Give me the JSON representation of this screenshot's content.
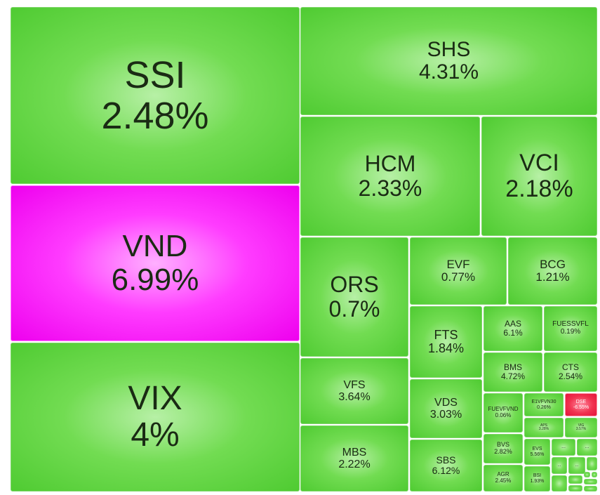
{
  "chart_data": {
    "type": "treemap",
    "colors": {
      "up": "#52cc35",
      "ceiling": "#ff00ff",
      "down": "#e8173e"
    },
    "tiles": [
      {
        "ticker": "SSI",
        "change": "2.48%",
        "status": "up"
      },
      {
        "ticker": "VND",
        "change": "6.99%",
        "status": "ceiling"
      },
      {
        "ticker": "VIX",
        "change": "4%",
        "status": "up"
      },
      {
        "ticker": "SHS",
        "change": "4.31%",
        "status": "up"
      },
      {
        "ticker": "HCM",
        "change": "2.33%",
        "status": "up"
      },
      {
        "ticker": "VCI",
        "change": "2.18%",
        "status": "up"
      },
      {
        "ticker": "ORS",
        "change": "0.7%",
        "status": "up"
      },
      {
        "ticker": "EVF",
        "change": "0.77%",
        "status": "up"
      },
      {
        "ticker": "BCG",
        "change": "1.21%",
        "status": "up"
      },
      {
        "ticker": "FTS",
        "change": "1.84%",
        "status": "up"
      },
      {
        "ticker": "AAS",
        "change": "6.1%",
        "status": "up"
      },
      {
        "ticker": "FUESSVFL",
        "change": "0.19%",
        "status": "up"
      },
      {
        "ticker": "BMS",
        "change": "4.72%",
        "status": "up"
      },
      {
        "ticker": "CTS",
        "change": "2.54%",
        "status": "up"
      },
      {
        "ticker": "VFS",
        "change": "3.64%",
        "status": "up"
      },
      {
        "ticker": "VDS",
        "change": "3.03%",
        "status": "up"
      },
      {
        "ticker": "FUEVFVND",
        "change": "0.06%",
        "status": "up"
      },
      {
        "ticker": "E1VFVN30",
        "change": "0.26%",
        "status": "up"
      },
      {
        "ticker": "DSE",
        "change": "-6.55%",
        "status": "down"
      },
      {
        "ticker": "APS",
        "change": "3.28%",
        "status": "up"
      },
      {
        "ticker": "VIG",
        "change": "3.57%",
        "status": "up"
      },
      {
        "ticker": "MBS",
        "change": "2.22%",
        "status": "up"
      },
      {
        "ticker": "SBS",
        "change": "6.12%",
        "status": "up"
      },
      {
        "ticker": "BVS",
        "change": "2.82%",
        "status": "up"
      },
      {
        "ticker": "EVS",
        "change": "5.56%",
        "status": "up"
      },
      {
        "ticker": "AGR",
        "change": "2.45%",
        "status": "up"
      },
      {
        "ticker": "BSI",
        "change": "1.93%",
        "status": "up"
      },
      {
        "ticker": "...",
        "change": "",
        "status": "up"
      },
      {
        "ticker": "...",
        "change": "",
        "status": "up"
      },
      {
        "ticker": "...",
        "change": "",
        "status": "up"
      },
      {
        "ticker": "...",
        "change": "",
        "status": "up"
      },
      {
        "ticker": "",
        "change": "",
        "status": "up"
      },
      {
        "ticker": "",
        "change": "",
        "status": "up"
      },
      {
        "ticker": "",
        "change": "",
        "status": "up"
      },
      {
        "ticker": "",
        "change": "",
        "status": "up"
      },
      {
        "ticker": "",
        "change": "",
        "status": "up"
      },
      {
        "ticker": "",
        "change": "",
        "status": "up"
      },
      {
        "ticker": "",
        "change": "",
        "status": "up"
      },
      {
        "ticker": "",
        "change": "",
        "status": "up"
      }
    ]
  }
}
